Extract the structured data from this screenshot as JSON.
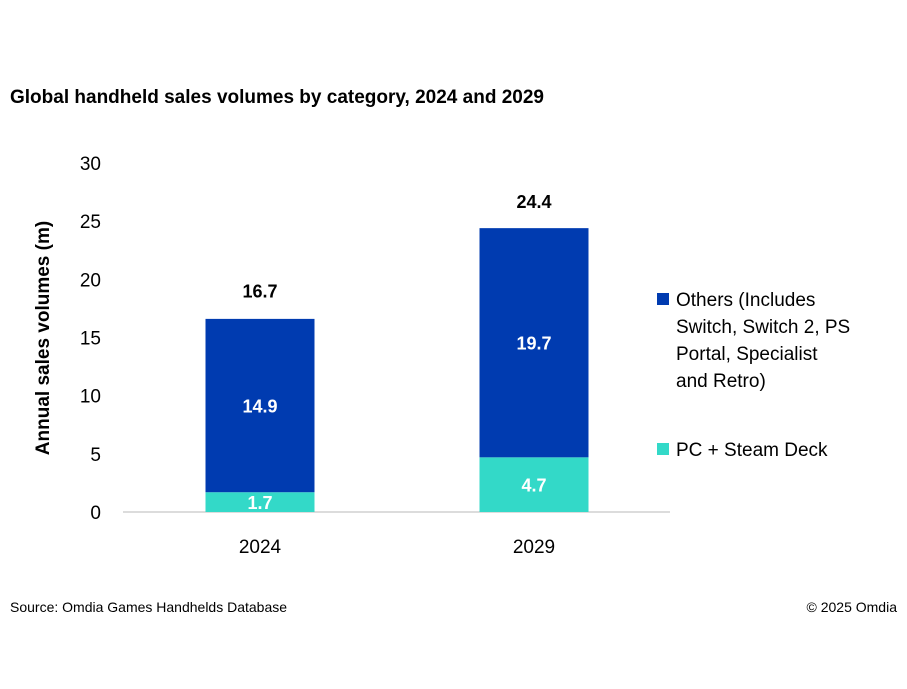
{
  "chart_data": {
    "type": "bar",
    "stacked": true,
    "title": "Global handheld sales volumes by category, 2024 and 2029",
    "ylabel": "Annual sales volumes (m)",
    "xlabel": "",
    "ylim": [
      0,
      30
    ],
    "yticks": [
      0,
      5,
      10,
      15,
      20,
      25,
      30
    ],
    "grid": false,
    "legend_position": "right",
    "categories": [
      "2024",
      "2029"
    ],
    "series": [
      {
        "name": "PC + Steam Deck",
        "values": [
          1.7,
          4.7
        ],
        "color": "#33d9c8"
      },
      {
        "name": "Others (Includes Switch, Switch 2, PS Portal, Specialist and Retro)",
        "legend_lines": [
          "Others (Includes",
          "Switch, Switch 2, PS",
          "Portal, Specialist",
          "and Retro)"
        ],
        "values": [
          14.9,
          19.7
        ],
        "color": "#003bb0"
      }
    ],
    "totals": [
      16.7,
      24.4
    ]
  },
  "footer": {
    "source": "Source: Omdia Games Handhelds Database",
    "copyright": "© 2025 Omdia"
  }
}
